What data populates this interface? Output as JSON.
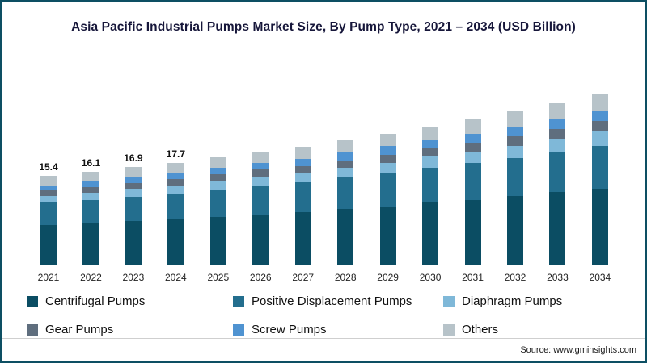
{
  "title": "Asia Pacific Industrial Pumps Market Size, By Pump Type, 2021 – 2034 (USD Billion)",
  "source": "Source: www.gminsights.com",
  "frame": {
    "border_color": "#0d4f63"
  },
  "chart_data": {
    "type": "bar",
    "stacked": true,
    "title": "Asia Pacific Industrial Pumps Market Size, By Pump Type, 2021 – 2034 (USD Billion)",
    "xlabel": "",
    "ylabel": "USD Billion",
    "ylim": [
      0,
      32
    ],
    "grid": false,
    "legend_position": "bottom",
    "categories": [
      "2021",
      "2022",
      "2023",
      "2024",
      "2025",
      "2026",
      "2027",
      "2028",
      "2029",
      "2030",
      "2031",
      "2032",
      "2033",
      "2034"
    ],
    "series": [
      {
        "name": "Centrifugal Pumps",
        "color": "#0b4d63",
        "values": [
          6.9,
          7.2,
          7.6,
          8.0,
          8.4,
          8.8,
          9.2,
          9.7,
          10.2,
          10.8,
          11.3,
          11.9,
          12.6,
          13.2
        ]
      },
      {
        "name": "Positive Displacement Pumps",
        "color": "#236e8e",
        "values": [
          3.9,
          4.0,
          4.2,
          4.4,
          4.7,
          4.9,
          5.1,
          5.4,
          5.7,
          6.0,
          6.3,
          6.6,
          7.0,
          7.4
        ]
      },
      {
        "name": "Diaphragm Pumps",
        "color": "#7fb8d8",
        "values": [
          1.2,
          1.3,
          1.4,
          1.4,
          1.5,
          1.6,
          1.6,
          1.7,
          1.8,
          1.9,
          2.0,
          2.1,
          2.2,
          2.4
        ]
      },
      {
        "name": "Gear Pumps",
        "color": "#5f6e7e",
        "values": [
          0.9,
          1.0,
          1.0,
          1.1,
          1.1,
          1.2,
          1.2,
          1.3,
          1.4,
          1.4,
          1.5,
          1.6,
          1.7,
          1.8
        ]
      },
      {
        "name": "Screw Pumps",
        "color": "#4f93d1",
        "values": [
          0.9,
          1.0,
          1.0,
          1.1,
          1.1,
          1.2,
          1.2,
          1.3,
          1.4,
          1.4,
          1.5,
          1.6,
          1.7,
          1.8
        ]
      },
      {
        "name": "Others",
        "color": "#b7c3c9",
        "values": [
          1.6,
          1.6,
          1.7,
          1.7,
          1.8,
          1.8,
          2.2,
          2.2,
          2.2,
          2.4,
          2.6,
          2.7,
          2.7,
          2.8
        ]
      }
    ],
    "totals": [
      15.4,
      16.1,
      16.9,
      17.7,
      18.6,
      19.5,
      20.5,
      21.6,
      22.7,
      23.9,
      25.2,
      26.5,
      27.9,
      29.4
    ],
    "bar_labels": [
      "15.4",
      "16.1",
      "16.9",
      "17.7",
      "",
      "",
      "",
      "",
      "",
      "",
      "",
      "",
      "",
      ""
    ]
  },
  "legend": {
    "items": [
      {
        "label": "Centrifugal Pumps",
        "color": "#0b4d63"
      },
      {
        "label": "Positive Displacement Pumps",
        "color": "#236e8e"
      },
      {
        "label": "Diaphragm Pumps",
        "color": "#7fb8d8"
      },
      {
        "label": "Gear Pumps",
        "color": "#5f6e7e"
      },
      {
        "label": "Screw Pumps",
        "color": "#4f93d1"
      },
      {
        "label": "Others",
        "color": "#b7c3c9"
      }
    ]
  }
}
